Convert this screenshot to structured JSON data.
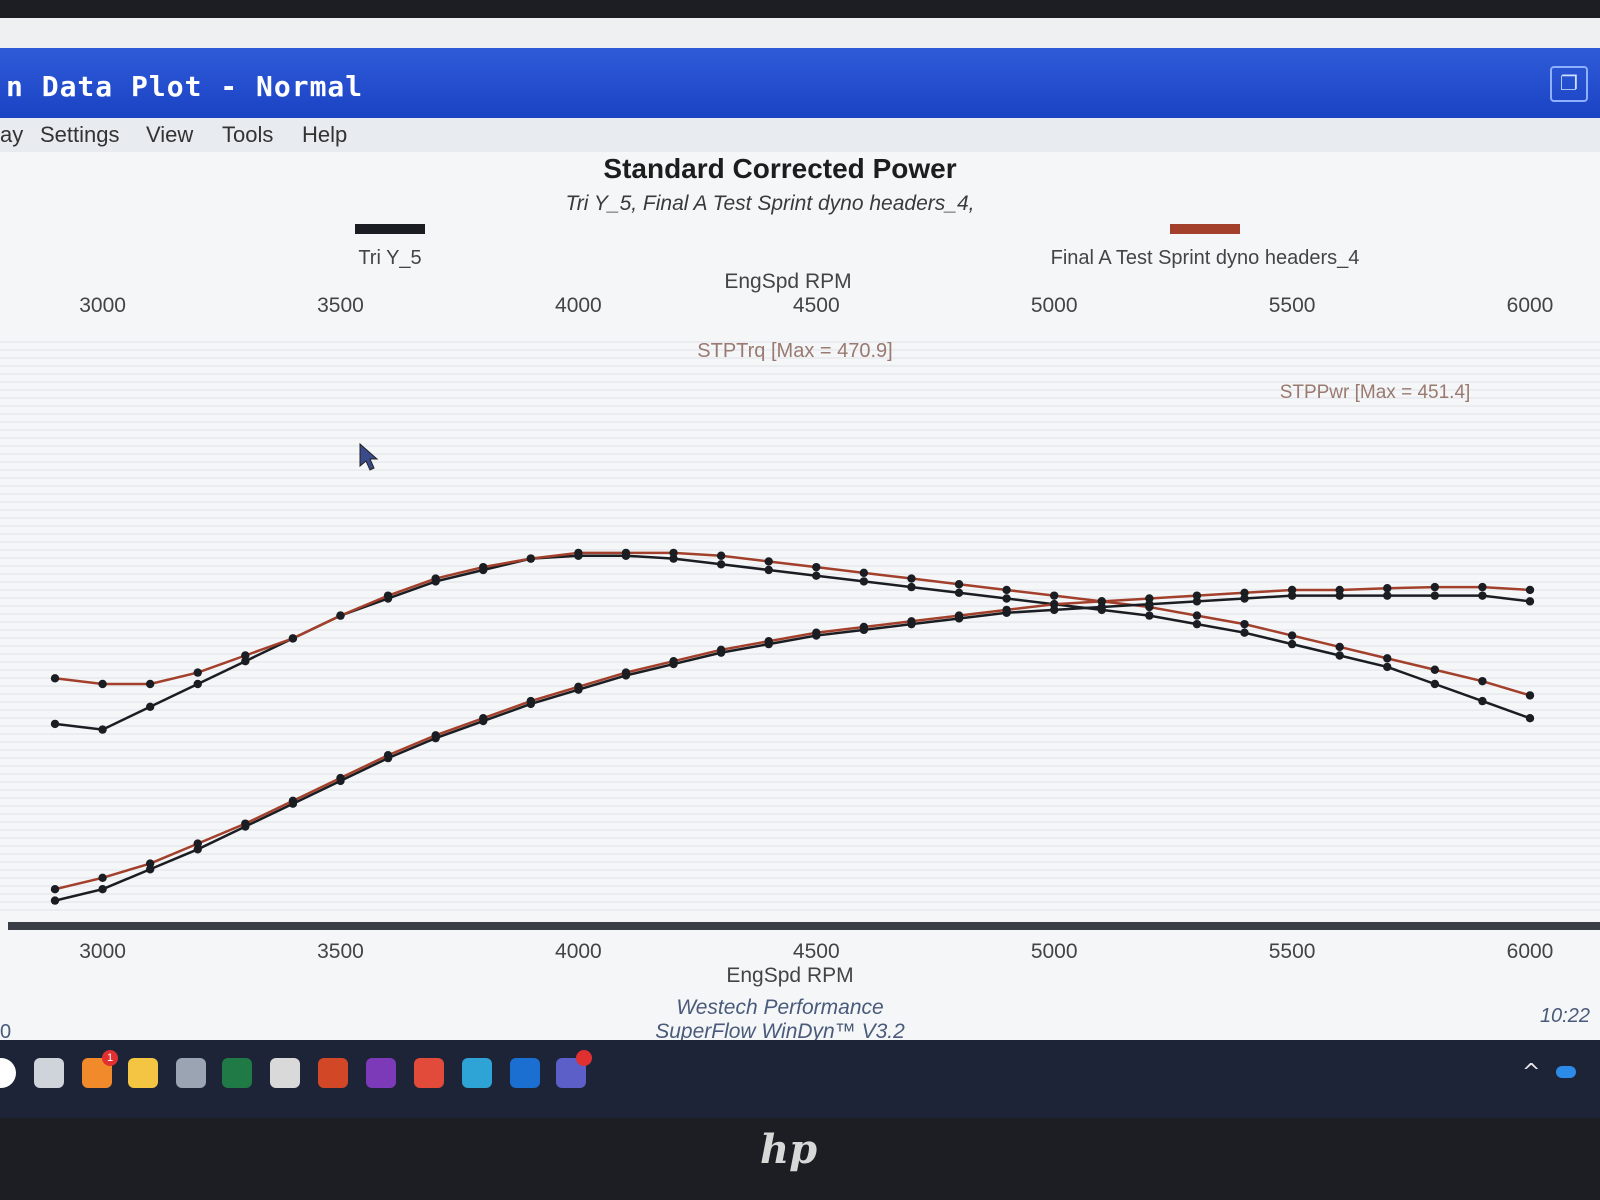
{
  "window": {
    "title": "n Data Plot - Normal",
    "restore_icon": "restore-icon"
  },
  "menu": {
    "items": [
      "ay",
      "Settings",
      "View",
      "Tools",
      "Help"
    ]
  },
  "chart_data": {
    "type": "line",
    "title": "Standard Corrected Power",
    "subtitle": "Tri Y_5, Final A Test Sprint dyno headers_4,",
    "xlabel": "EngSpd RPM",
    "x_ticks": [
      3000,
      3500,
      4000,
      4500,
      5000,
      5500,
      6000
    ],
    "xlim": [
      2900,
      6000
    ],
    "legend": [
      {
        "name": "Tri Y_5",
        "color": "#1a1d22"
      },
      {
        "name": "Final A Test Sprint dyno headers_4",
        "color": "#a3402c"
      }
    ],
    "annotations": [
      "STPTrq [Max = 470.9]",
      "STPPwr [Max = 451.4]"
    ],
    "x": [
      2900,
      3000,
      3100,
      3200,
      3300,
      3400,
      3500,
      3600,
      3700,
      3800,
      3900,
      4000,
      4100,
      4200,
      4300,
      4400,
      4500,
      4600,
      4700,
      4800,
      4900,
      5000,
      5100,
      5200,
      5300,
      5400,
      5500,
      5600,
      5700,
      5800,
      5900,
      6000
    ],
    "series": [
      {
        "name": "Tri Y_5 STPTrq",
        "color": "#1a1d22",
        "values": [
          0.33,
          0.32,
          0.36,
          0.4,
          0.44,
          0.48,
          0.52,
          0.55,
          0.58,
          0.6,
          0.62,
          0.625,
          0.625,
          0.62,
          0.61,
          0.6,
          0.59,
          0.58,
          0.57,
          0.56,
          0.55,
          0.54,
          0.53,
          0.52,
          0.505,
          0.49,
          0.47,
          0.45,
          0.43,
          0.4,
          0.37,
          0.34
        ]
      },
      {
        "name": "Final A Test Sprint dyno headers_4 STPTrq",
        "color": "#a3402c",
        "values": [
          0.41,
          0.4,
          0.4,
          0.42,
          0.45,
          0.48,
          0.52,
          0.555,
          0.585,
          0.605,
          0.62,
          0.63,
          0.63,
          0.63,
          0.625,
          0.615,
          0.605,
          0.595,
          0.585,
          0.575,
          0.565,
          0.555,
          0.545,
          0.535,
          0.52,
          0.505,
          0.485,
          0.465,
          0.445,
          0.425,
          0.405,
          0.38
        ]
      },
      {
        "name": "Tri Y_5 STPPwr",
        "color": "#1a1d22",
        "values": [
          0.02,
          0.04,
          0.075,
          0.11,
          0.15,
          0.19,
          0.23,
          0.27,
          0.305,
          0.335,
          0.365,
          0.39,
          0.415,
          0.435,
          0.455,
          0.47,
          0.485,
          0.495,
          0.505,
          0.515,
          0.525,
          0.53,
          0.535,
          0.54,
          0.545,
          0.55,
          0.555,
          0.555,
          0.555,
          0.555,
          0.555,
          0.545
        ]
      },
      {
        "name": "Final A Test Sprint dyno headers_4 STPPwr",
        "color": "#a3402c",
        "values": [
          0.04,
          0.06,
          0.085,
          0.12,
          0.155,
          0.195,
          0.235,
          0.275,
          0.31,
          0.34,
          0.37,
          0.395,
          0.42,
          0.44,
          0.46,
          0.475,
          0.49,
          0.5,
          0.51,
          0.52,
          0.53,
          0.54,
          0.545,
          0.55,
          0.555,
          0.56,
          0.565,
          0.565,
          0.568,
          0.57,
          0.57,
          0.565
        ]
      }
    ],
    "grid": true,
    "legend_position": "top"
  },
  "footer": {
    "line1": "Westech Performance",
    "line2": "SuperFlow WinDyn™ V3.2",
    "clock": "10:22",
    "left_fragment": "0"
  },
  "taskbar": {
    "icons": [
      {
        "name": "start-icon",
        "color": "#ffffff"
      },
      {
        "name": "task-view-icon",
        "color": "#cfd3da"
      },
      {
        "name": "notification-app-icon",
        "color": "#f08a2b",
        "badge": "1"
      },
      {
        "name": "file-explorer-icon",
        "color": "#f4c542"
      },
      {
        "name": "calculator-icon",
        "color": "#9aa4b3"
      },
      {
        "name": "excel-icon",
        "color": "#1f7a45"
      },
      {
        "name": "notepad-icon",
        "color": "#d9d9d9"
      },
      {
        "name": "powerpoint-icon",
        "color": "#d24726"
      },
      {
        "name": "onenote-icon",
        "color": "#7d3ab8"
      },
      {
        "name": "chrome-icon",
        "color": "#e24a3a"
      },
      {
        "name": "edge-icon",
        "color": "#2da3d6"
      },
      {
        "name": "outlook-icon",
        "color": "#1a6fd0"
      },
      {
        "name": "teams-icon",
        "color": "#5b5fc7",
        "badge": ""
      }
    ],
    "tray": {
      "chevron": "^",
      "cloud_icon": "onedrive-icon"
    }
  },
  "device": {
    "brand": "hp"
  }
}
